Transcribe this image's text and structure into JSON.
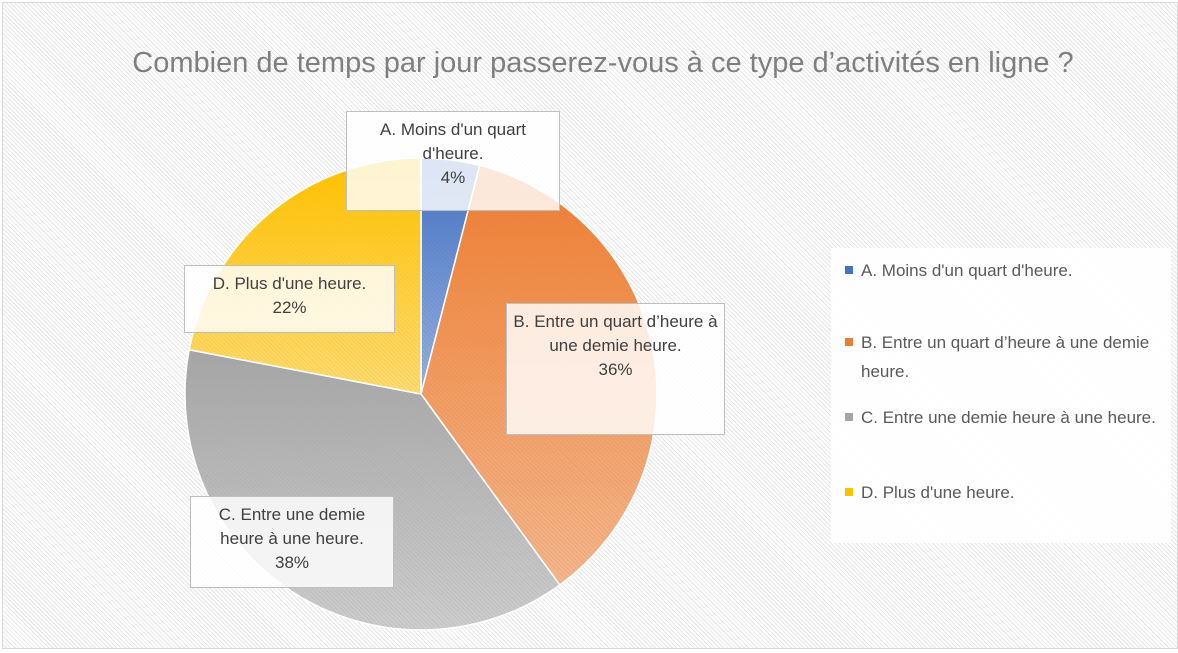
{
  "chart_data": {
    "type": "pie",
    "title": "Combien de temps par jour passerez-vous à ce type d’activités en ligne ?",
    "categories": [
      "A. Moins d'un quart d'heure.",
      "B. Entre un quart d’heure à une demie heure.",
      "C. Entre une demie heure à une heure.",
      "D. Plus d'une heure."
    ],
    "values": [
      4,
      36,
      38,
      22
    ],
    "value_labels": [
      "4%",
      "36%",
      "38%",
      "22%"
    ],
    "colors": [
      "#4472c4",
      "#ed7d31",
      "#a5a5a5",
      "#ffc000"
    ],
    "legend": "right"
  }
}
